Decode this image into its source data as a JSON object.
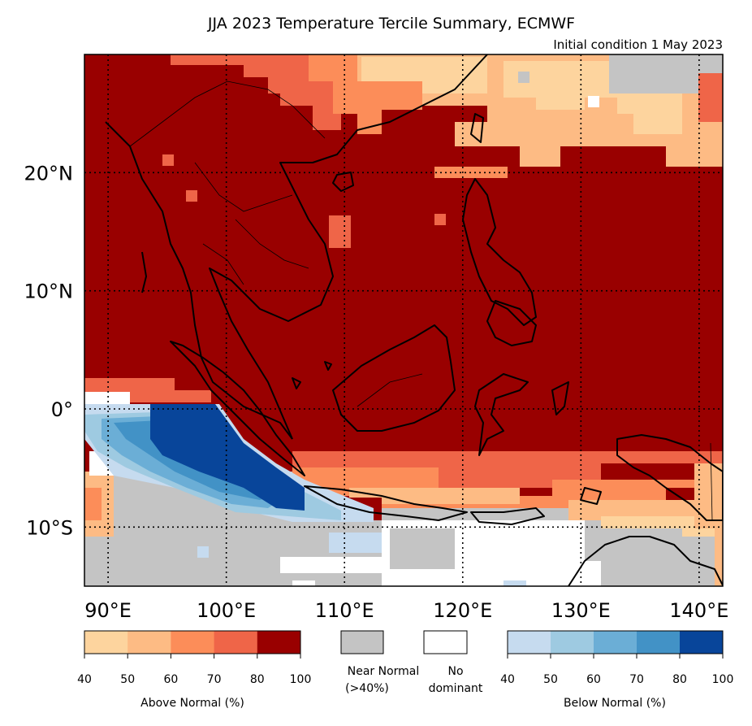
{
  "title": "JJA 2023 Temperature Tercile Summary, ECMWF",
  "subtitle": "Initial condition 1 May 2023",
  "map": {
    "lon_range": [
      88,
      142
    ],
    "lat_range": [
      -15,
      30
    ],
    "lon_ticks": [
      {
        "value": 90,
        "label": "90°E"
      },
      {
        "value": 100,
        "label": "100°E"
      },
      {
        "value": 110,
        "label": "110°E"
      },
      {
        "value": 120,
        "label": "120°E"
      },
      {
        "value": 130,
        "label": "130°E"
      },
      {
        "value": 140,
        "label": "140°E"
      }
    ],
    "lat_ticks": [
      {
        "value": 20,
        "label": "20°N"
      },
      {
        "value": 10,
        "label": "10°N"
      },
      {
        "value": 0,
        "label": "0°"
      },
      {
        "value": -10,
        "label": "10°S"
      }
    ],
    "gridlines": "dotted",
    "dominant_category": "Above Normal 80-100%"
  },
  "legend": {
    "above": {
      "caption": "Above Normal (%)",
      "ticks": [
        "40",
        "50",
        "60",
        "70",
        "80",
        "100"
      ],
      "colors": [
        "#fdd49e",
        "#fdbb84",
        "#fc8d59",
        "#ef6548",
        "#990000"
      ]
    },
    "near": {
      "caption_line1": "Near Normal",
      "caption_line2": "(>40%)",
      "color": "#c4c4c4"
    },
    "nodom": {
      "caption_line1": "No",
      "caption_line2": "dominant",
      "color": "#ffffff"
    },
    "below": {
      "caption": "Below Normal (%)",
      "ticks": [
        "40",
        "50",
        "60",
        "70",
        "80",
        "100"
      ],
      "colors": [
        "#c6dbef",
        "#9ecae1",
        "#6baed6",
        "#4292c6",
        "#08459a"
      ]
    }
  }
}
